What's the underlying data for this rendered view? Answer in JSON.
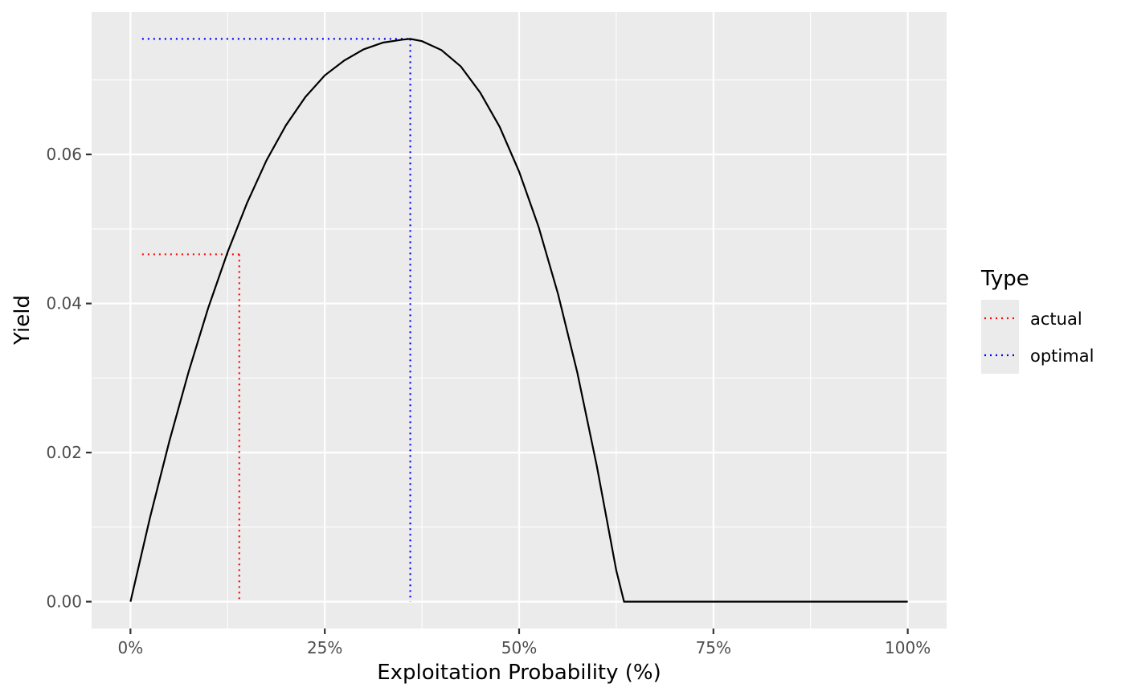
{
  "chart_data": {
    "type": "line",
    "title": "",
    "xlabel": "Exploitation Probability (%)",
    "ylabel": "Yield",
    "xlim": [
      -0.05,
      1.05
    ],
    "ylim": [
      -0.0036,
      0.0791
    ],
    "x_ticks": [
      {
        "value": 0.0,
        "label": "0%"
      },
      {
        "value": 0.25,
        "label": "25%"
      },
      {
        "value": 0.5,
        "label": "50%"
      },
      {
        "value": 0.75,
        "label": "75%"
      },
      {
        "value": 1.0,
        "label": "100%"
      }
    ],
    "y_ticks": [
      {
        "value": 0.0,
        "label": "0.00"
      },
      {
        "value": 0.02,
        "label": "0.02"
      },
      {
        "value": 0.04,
        "label": "0.04"
      },
      {
        "value": 0.06,
        "label": "0.06"
      }
    ],
    "x_minor": [
      0.125,
      0.375,
      0.625,
      0.875
    ],
    "y_minor": [
      0.01,
      0.03,
      0.05,
      0.07
    ],
    "grid": true,
    "panel_background": "#ebebeb",
    "grid_color": "#ffffff",
    "curve": {
      "color": "#000000",
      "x": [
        0.0,
        0.025,
        0.05,
        0.075,
        0.1,
        0.125,
        0.15,
        0.175,
        0.2,
        0.225,
        0.25,
        0.275,
        0.3,
        0.325,
        0.35,
        0.36,
        0.375,
        0.4,
        0.425,
        0.45,
        0.475,
        0.5,
        0.525,
        0.55,
        0.575,
        0.6,
        0.625,
        0.635,
        0.65,
        0.7,
        0.75,
        0.8,
        0.85,
        0.9,
        0.95,
        1.0
      ],
      "y": [
        0.0,
        0.0112,
        0.0215,
        0.0309,
        0.0394,
        0.0469,
        0.0535,
        0.0592,
        0.0639,
        0.0677,
        0.0706,
        0.0726,
        0.0741,
        0.075,
        0.0754,
        0.0755,
        0.0752,
        0.074,
        0.0718,
        0.0683,
        0.0637,
        0.0577,
        0.0503,
        0.0413,
        0.0307,
        0.0182,
        0.0042,
        0.0,
        0.0,
        0.0,
        0.0,
        0.0,
        0.0,
        0.0,
        0.0,
        0.0
      ]
    },
    "reference_lines": [
      {
        "name": "actual",
        "color": "#ff0000",
        "x": 0.14,
        "y": 0.0466
      },
      {
        "name": "optimal",
        "color": "#0000ff",
        "x": 0.36,
        "y": 0.0755
      }
    ],
    "legend": {
      "title": "Type",
      "placement": "right",
      "entries": [
        {
          "label": "actual",
          "color": "#ff0000",
          "linestyle": "dotted"
        },
        {
          "label": "optimal",
          "color": "#0000ff",
          "linestyle": "dotted"
        }
      ]
    }
  }
}
